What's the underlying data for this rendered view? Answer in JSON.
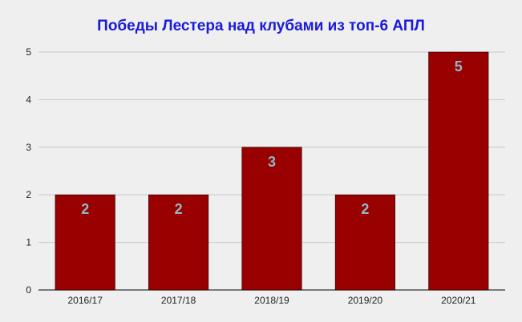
{
  "chart_data": {
    "type": "bar",
    "title": "Победы Лестера над клубами из топ-6 АПЛ",
    "xlabel": "",
    "ylabel": "",
    "categories": [
      "2016/17",
      "2017/18",
      "2018/19",
      "2019/20",
      "2020/21"
    ],
    "values": [
      2,
      2,
      3,
      2,
      5
    ],
    "ylim": [
      0,
      5
    ],
    "yticks": [
      0,
      1,
      2,
      3,
      4,
      5
    ],
    "grid": true,
    "legend": "none",
    "data_labels": true
  },
  "colors": {
    "background": "#efefef",
    "title": "#1a1adb",
    "bar": "#990000",
    "data_label": "#8fb8c9",
    "grid": "#c8c8c8",
    "axis": "#333333"
  }
}
